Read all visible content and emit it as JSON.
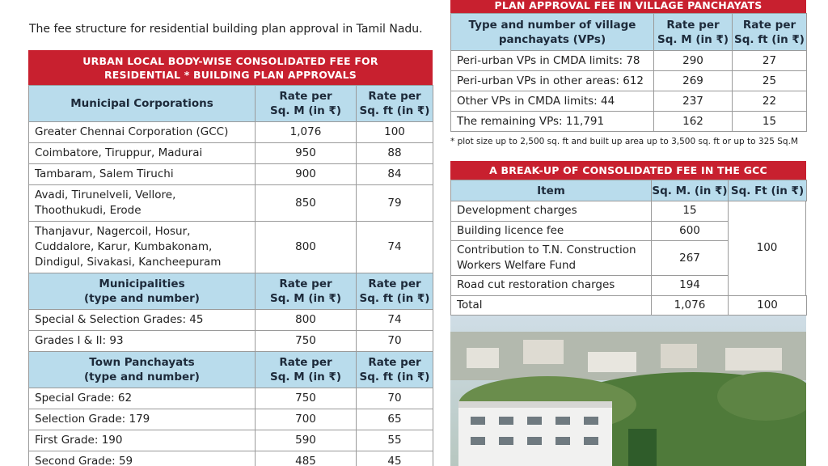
{
  "intro": "The fee structure for residential building plan approval in Tamil Nadu.",
  "urban_table": {
    "title": [
      "URBAN LOCAL BODY-WISE CONSOLIDATED FEE FOR",
      "RESIDENTIAL * BUILDING PLAN APPROVALS"
    ],
    "sections": [
      {
        "header": [
          "Municipal Corporations",
          [
            "Rate per",
            "Sq. M (in ₹)"
          ],
          [
            "Rate per",
            "Sq. ft (in ₹)"
          ]
        ],
        "rows": [
          [
            "Greater Chennai Corporation (GCC)",
            "1,076",
            100
          ],
          [
            "Coimbatore, Tiruppur, Madurai",
            950,
            88
          ],
          [
            "Tambaram, Salem Tiruchi",
            900,
            84
          ],
          [
            [
              "Avadi, Tirunelveli, Vellore,",
              "Thoothukudi, Erode"
            ],
            850,
            79
          ],
          [
            [
              "Thanjavur, Nagercoil, Hosur,",
              "Cuddalore, Karur, Kumbakonam,",
              "Dindigul, Sivakasi, Kancheepuram"
            ],
            800,
            74
          ]
        ]
      },
      {
        "header": [
          [
            "Municipalities",
            "(type and number)"
          ],
          [
            "Rate per",
            "Sq. M (in ₹)"
          ],
          [
            "Rate per",
            "Sq. ft (in ₹)"
          ]
        ],
        "rows": [
          [
            "Special & Selection Grades: 45",
            800,
            74
          ],
          [
            "Grades I & II: 93",
            750,
            70
          ]
        ]
      },
      {
        "header": [
          [
            "Town Panchayats",
            "(type and number)"
          ],
          [
            "Rate per",
            "Sq. M (in ₹)"
          ],
          [
            "Rate per",
            "Sq. ft (in ₹)"
          ]
        ],
        "rows": [
          [
            "Special Grade: 62",
            750,
            70
          ],
          [
            "Selection Grade: 179",
            700,
            65
          ],
          [
            "First Grade: 190",
            590,
            55
          ],
          [
            "Second Grade: 59",
            485,
            45
          ]
        ]
      }
    ]
  },
  "village_table": {
    "title": "PLAN APPROVAL FEE IN VILLAGE PANCHAYATS",
    "header": [
      [
        "Type and number of village",
        "panchayats (VPs)"
      ],
      [
        "Rate per",
        "Sq. M (in ₹)"
      ],
      [
        "Rate per",
        "Sq. ft (in ₹)"
      ]
    ],
    "rows": [
      [
        "Peri-urban VPs in CMDA limits: 78",
        290,
        27
      ],
      [
        "Peri-urban VPs in other areas: 612",
        269,
        25
      ],
      [
        "Other VPs in CMDA limits: 44",
        237,
        22
      ],
      [
        "The remaining VPs: 11,791",
        162,
        15
      ]
    ]
  },
  "footnote": "* plot size up to 2,500 sq. ft and built up area up to 3,500 sq. ft or up to 325 Sq.M",
  "gcc_table": {
    "title": "A BREAK-UP OF CONSOLIDATED FEE IN THE GCC",
    "header": [
      "Item",
      "Sq. M. (in ₹)",
      "Sq. Ft (in ₹)"
    ],
    "rows": [
      [
        "Development charges",
        15
      ],
      [
        "Building licence fee",
        600
      ],
      [
        [
          "Contribution to T.N. Construction",
          "Workers Welfare Fund"
        ],
        267
      ],
      [
        "Road cut restoration charges",
        194
      ]
    ],
    "combined": 100,
    "total": [
      "Total",
      "1,076",
      100
    ]
  }
}
